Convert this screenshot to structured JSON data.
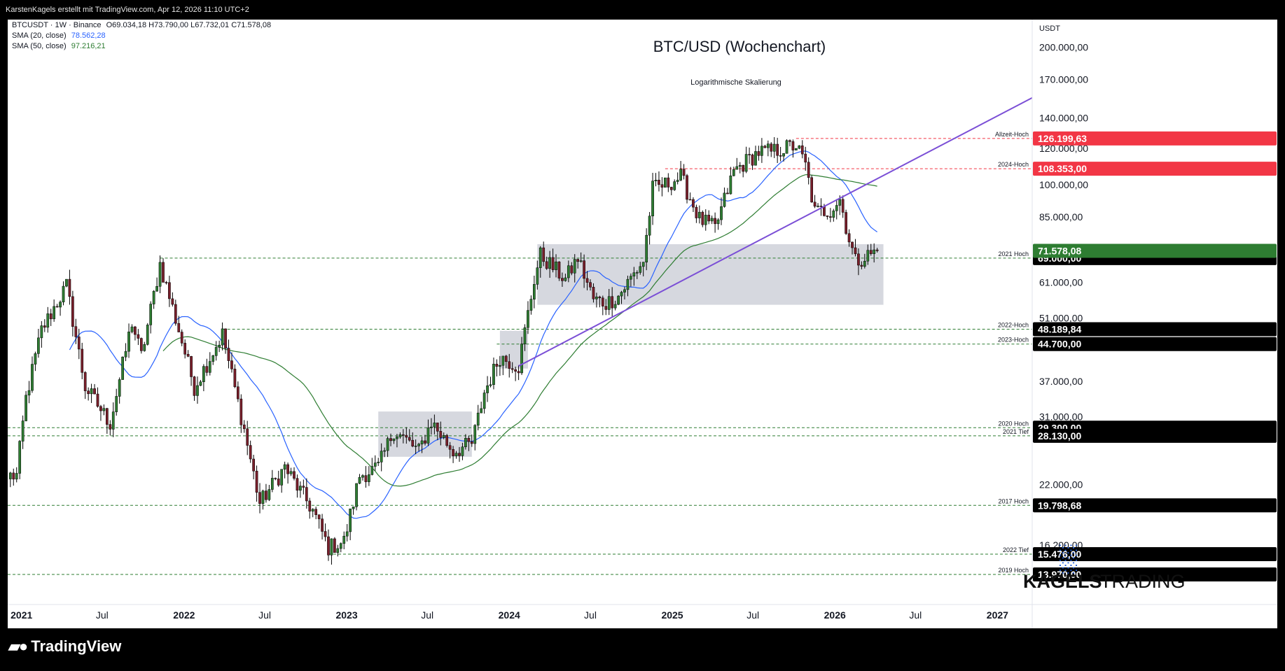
{
  "header": {
    "attribution": "KarstenKagels erstellt mit TradingView.com, Apr 12, 2026 11:10 UTC+2"
  },
  "legend": {
    "symbol_line": "BTCUSDT · 1W · Binance",
    "ohlc": "O69.034,18 H73.790,00 L67.732,01 C71.578,08",
    "sma20_label": "SMA (20, close)",
    "sma20_value": "78.562,28",
    "sma50_label": "SMA (50, close)",
    "sma50_value": "97.216,21"
  },
  "chart_data": {
    "type": "candlestick",
    "title": "BTC/USD (Wochenchart)",
    "subtitle": "Logarithmische Skalierung",
    "currency": "USDT",
    "y_scale": "log",
    "ylim": [
      12000,
      230000
    ],
    "xlim": [
      "2020-12-01",
      "2027-03-20"
    ],
    "x_ticks": [
      {
        "label": "2021",
        "date": "2021-01-01"
      },
      {
        "label": "Jul",
        "date": "2021-07-01"
      },
      {
        "label": "2022",
        "date": "2022-01-01"
      },
      {
        "label": "Jul",
        "date": "2022-07-01"
      },
      {
        "label": "2023",
        "date": "2023-01-01"
      },
      {
        "label": "Jul",
        "date": "2023-07-01"
      },
      {
        "label": "2024",
        "date": "2024-01-01"
      },
      {
        "label": "Jul",
        "date": "2024-07-01"
      },
      {
        "label": "2025",
        "date": "2025-01-01"
      },
      {
        "label": "Jul",
        "date": "2025-07-01"
      },
      {
        "label": "2026",
        "date": "2026-01-01"
      },
      {
        "label": "Jul",
        "date": "2026-07-01"
      },
      {
        "label": "2027",
        "date": "2027-01-01"
      }
    ],
    "y_ticks": [
      {
        "label": "200.000,00",
        "value": 200000
      },
      {
        "label": "170.000,00",
        "value": 170000
      },
      {
        "label": "140.000,00",
        "value": 140000
      },
      {
        "label": "120.000,00",
        "value": 120000
      },
      {
        "label": "100.000,00",
        "value": 100000
      },
      {
        "label": "85.000,00",
        "value": 85000
      },
      {
        "label": "61.000,00",
        "value": 61000
      },
      {
        "label": "51.000,00",
        "value": 51000
      },
      {
        "label": "37.000,00",
        "value": 37000
      },
      {
        "label": "31.000,00",
        "value": 31000
      },
      {
        "label": "22.000,00",
        "value": 22000
      },
      {
        "label": "16.200,00",
        "value": 16200
      }
    ],
    "price_anchors": [
      [
        "2020-12-21",
        23000
      ],
      [
        "2021-01-11",
        34000
      ],
      [
        "2021-02-15",
        48000
      ],
      [
        "2021-04-12",
        60000
      ],
      [
        "2021-05-24",
        36000
      ],
      [
        "2021-07-19",
        30000
      ],
      [
        "2021-09-06",
        50000
      ],
      [
        "2021-09-27",
        42000
      ],
      [
        "2021-11-08",
        67000
      ],
      [
        "2021-12-20",
        48000
      ],
      [
        "2022-01-24",
        36000
      ],
      [
        "2022-03-28",
        47000
      ],
      [
        "2022-05-16",
        29000
      ],
      [
        "2022-06-20",
        20000
      ],
      [
        "2022-08-15",
        24000
      ],
      [
        "2022-10-17",
        19300
      ],
      [
        "2022-11-21",
        16000
      ],
      [
        "2022-12-26",
        16500
      ],
      [
        "2023-01-30",
        23000
      ],
      [
        "2023-03-13",
        24000
      ],
      [
        "2023-04-17",
        29000
      ],
      [
        "2023-06-12",
        26000
      ],
      [
        "2023-07-10",
        30200
      ],
      [
        "2023-08-28",
        26000
      ],
      [
        "2023-10-09",
        27000
      ],
      [
        "2023-11-06",
        35000
      ],
      [
        "2023-12-11",
        42000
      ],
      [
        "2024-01-22",
        40000
      ],
      [
        "2024-02-26",
        62000
      ],
      [
        "2024-03-11",
        70000
      ],
      [
        "2024-05-06",
        62000
      ],
      [
        "2024-06-03",
        69000
      ],
      [
        "2024-07-08",
        56000
      ],
      [
        "2024-08-05",
        55000
      ],
      [
        "2024-09-02",
        57000
      ],
      [
        "2024-10-28",
        68000
      ],
      [
        "2024-11-18",
        98000
      ],
      [
        "2024-12-16",
        100000
      ],
      [
        "2025-01-20",
        104000
      ],
      [
        "2025-03-03",
        84000
      ],
      [
        "2025-04-07",
        80000
      ],
      [
        "2025-05-19",
        107000
      ],
      [
        "2025-07-14",
        118000
      ],
      [
        "2025-08-11",
        118000
      ],
      [
        "2025-10-06",
        122000
      ],
      [
        "2025-10-27",
        110000
      ],
      [
        "2025-11-17",
        87000
      ],
      [
        "2025-12-22",
        88000
      ],
      [
        "2026-01-12",
        93000
      ],
      [
        "2026-02-02",
        76000
      ],
      [
        "2026-02-16",
        68000
      ],
      [
        "2026-03-16",
        70000
      ],
      [
        "2026-04-06",
        71578
      ]
    ],
    "series": [
      {
        "name": "SMA (20, close)",
        "color": "#2962ff",
        "period": 20
      },
      {
        "name": "SMA (50, close)",
        "color": "#2e7d32",
        "period": 50
      }
    ],
    "levels": [
      {
        "label": "Allzeit-Hoch",
        "value": 126199.63,
        "price_label": "126.199,63",
        "from": "2025-10-06",
        "style": "red-dash",
        "tag_color": "#f23645"
      },
      {
        "label": "2024-Hoch",
        "value": 108353,
        "price_label": "108.353,00",
        "from": "2024-12-16",
        "style": "red-dash",
        "tag_color": "#f23645"
      },
      {
        "label": "2021 Hoch",
        "value": 69000,
        "price_label": "69.000,00",
        "from": "2021-11-08",
        "style": "green-dash",
        "tag_color": "#000000"
      },
      {
        "label": "2022-Hoch",
        "value": 48189.84,
        "price_label": "48.189,84",
        "from": "2022-03-28",
        "style": "green-dash",
        "tag_color": "#000000"
      },
      {
        "label": "2023-Hoch",
        "value": 44700,
        "price_label": "44.700,00",
        "from": "2023-12-04",
        "style": "green-dash",
        "tag_color": "#000000"
      },
      {
        "label": "2020 Hoch",
        "value": 29300,
        "price_label": "29.300,00",
        "from": "2020-12-01",
        "style": "green-dash",
        "tag_color": "#000000"
      },
      {
        "label": "2021 Tief",
        "value": 28130,
        "price_label": "28.130,00",
        "from": "2020-12-01",
        "style": "green-dash",
        "tag_color": "#000000"
      },
      {
        "label": "2017 Hoch",
        "value": 19798.68,
        "price_label": "19.798,68",
        "from": "2020-12-01",
        "style": "green-dash",
        "tag_color": "#000000"
      },
      {
        "label": "2022 Tief",
        "value": 15476,
        "price_label": "15.476,00",
        "from": "2022-11-21",
        "style": "green-dash",
        "tag_color": "#000000"
      },
      {
        "label": "2019 Hoch",
        "value": 13970,
        "price_label": "13.970,00",
        "from": "2020-12-01",
        "style": "green-dash",
        "tag_color": "#000000"
      }
    ],
    "current_price": {
      "value": 71578.08,
      "price_label": "71.578,08",
      "tag_color": "#2e7d32"
    },
    "zones": [
      {
        "from": "2023-03-13",
        "to": "2023-10-09",
        "low": 25300,
        "high": 31800
      },
      {
        "from": "2023-12-11",
        "to": "2024-02-12",
        "low": 39500,
        "high": 47800
      },
      {
        "from": "2024-03-04",
        "to": "2026-04-20",
        "low": 54500,
        "high": 74000
      }
    ],
    "trendline": {
      "from": [
        "2024-01-22",
        40000
      ],
      "to": [
        "2027-03-20",
        155000
      ],
      "color": "#7b4fd6"
    }
  },
  "watermark": {
    "brand": "KAGELSTRADING",
    "part1": "KAGELS",
    "part2": "TRADING"
  },
  "footer": {
    "brand": "TradingView"
  }
}
